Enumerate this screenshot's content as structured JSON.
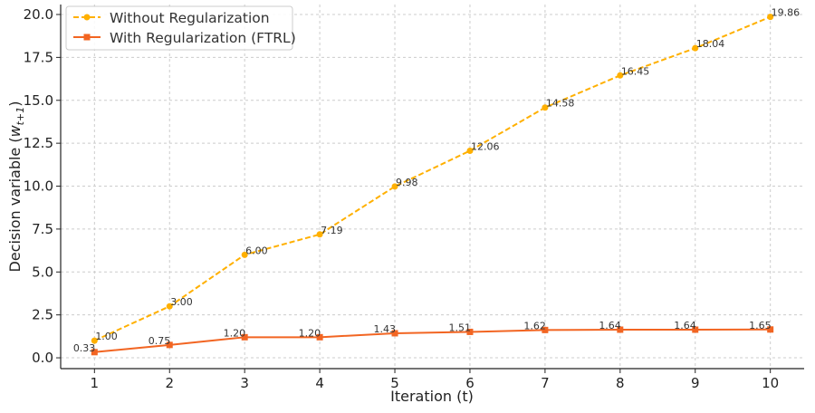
{
  "chart_data": {
    "type": "line",
    "title": "",
    "xlabel": "Iteration (t)",
    "ylabel": {
      "main": "Decision variable (",
      "var": "w",
      "sub": "t+1",
      "close": ")"
    },
    "x": [
      1,
      2,
      3,
      4,
      5,
      6,
      7,
      8,
      9,
      10
    ],
    "xlim": [
      0.55,
      10.45
    ],
    "ylim": [
      -0.63,
      20.58
    ],
    "xticks": [
      1,
      2,
      3,
      4,
      5,
      6,
      7,
      8,
      9,
      10
    ],
    "yticks": [
      "0.0",
      "2.5",
      "5.0",
      "7.5",
      "10.0",
      "12.5",
      "15.0",
      "17.5",
      "20.0"
    ],
    "grid": true,
    "legend_placement": "top-left",
    "series": [
      {
        "name": "Without Regularization",
        "color": "#FFB000",
        "style": "dashed",
        "marker": "circle",
        "values": [
          1.0,
          3.0,
          6.0,
          7.19,
          9.98,
          12.06,
          14.58,
          16.45,
          18.04,
          19.86
        ],
        "labels": [
          "1.00",
          "3.00",
          "6.00",
          "7.19",
          "9.98",
          "12.06",
          "14.58",
          "16.45",
          "18.04",
          "19.86"
        ]
      },
      {
        "name": "With Regularization (FTRL)",
        "color": "#F26522",
        "style": "solid",
        "marker": "square",
        "values": [
          0.33,
          0.75,
          1.2,
          1.2,
          1.43,
          1.51,
          1.62,
          1.64,
          1.64,
          1.65
        ],
        "labels": [
          "0.33",
          "0.75",
          "1.20",
          "1.20",
          "1.43",
          "1.51",
          "1.62",
          "1.64",
          "1.64",
          "1.65"
        ]
      }
    ]
  }
}
